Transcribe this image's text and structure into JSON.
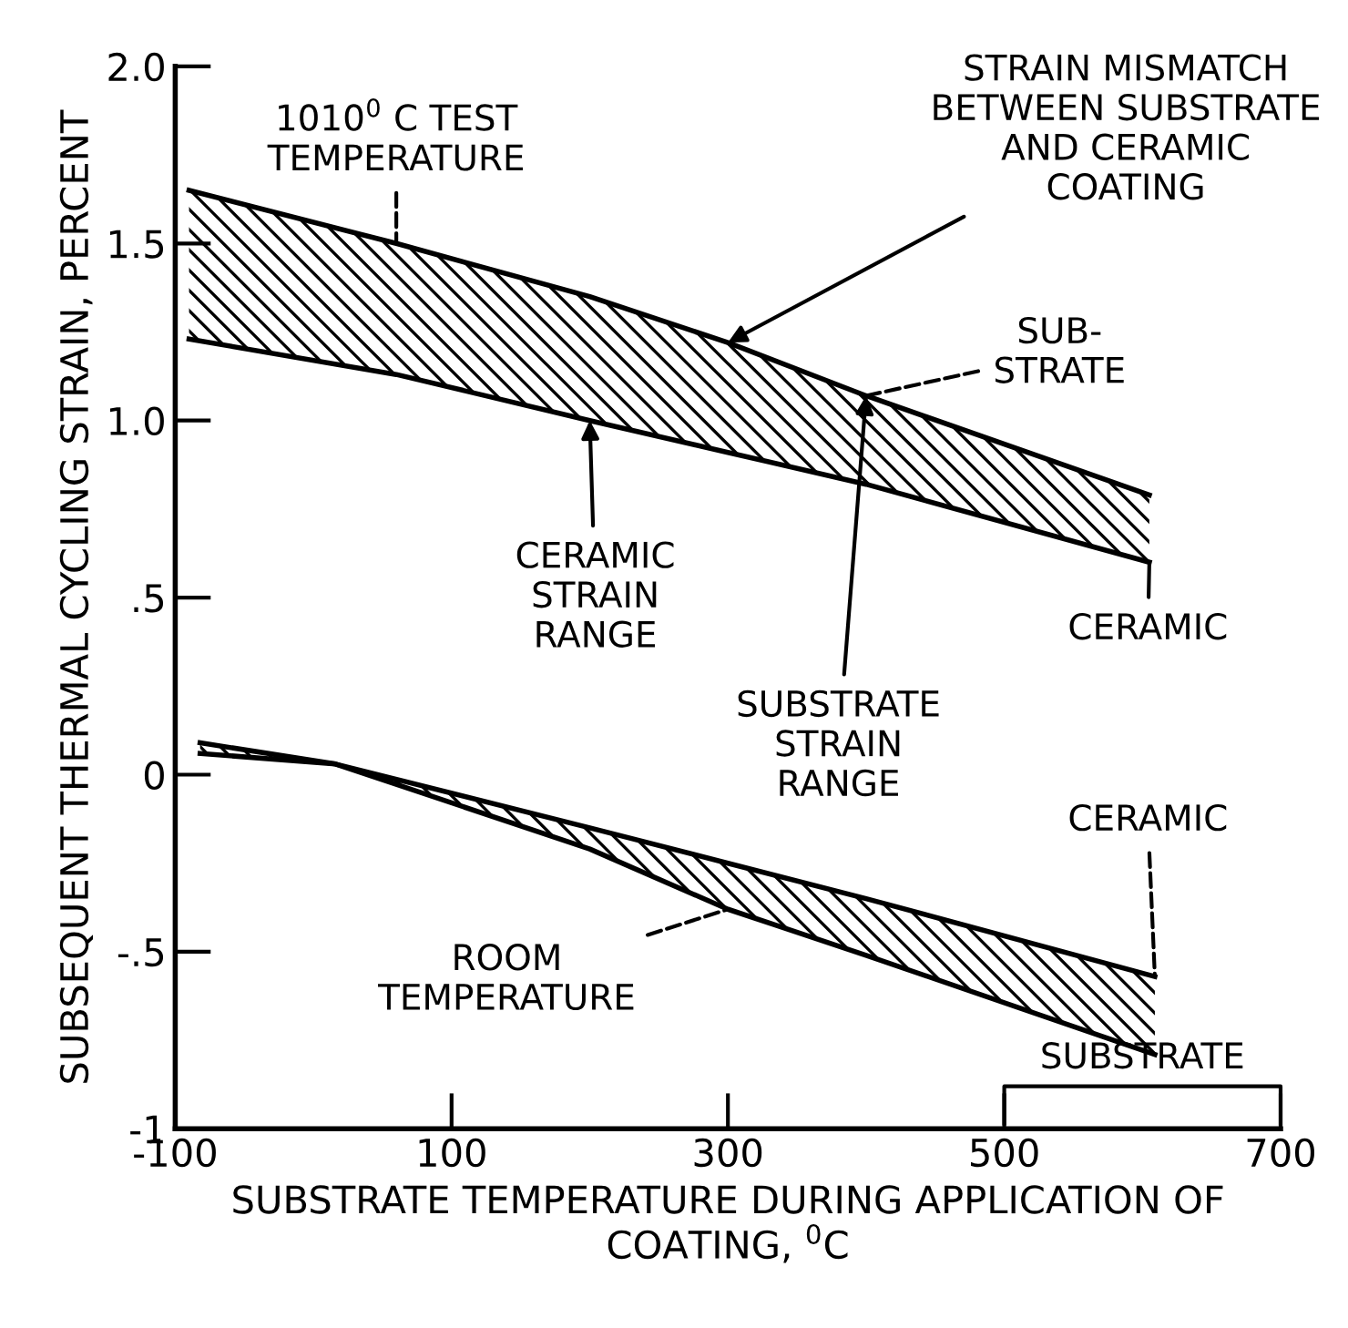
{
  "chart_data": {
    "type": "line",
    "xlabel": "SUBSTRATE TEMPERATURE DURING APPLICATION OF\nCOATING, $^{0}$C",
    "ylabel": "SUBSEQUENT THERMAL CYCLING STRAIN, PERCENT",
    "xlim": [
      -100,
      700
    ],
    "xticks": [
      -100,
      100,
      300,
      500,
      700
    ],
    "ylim": [
      -1,
      2
    ],
    "yticks": [
      {
        "value": -1,
        "label": "-1"
      },
      {
        "value": -0.5,
        "label": "-.5"
      },
      0,
      {
        "value": 0.5,
        "label": ".5"
      },
      {
        "value": 1,
        "label": "1.0"
      },
      {
        "value": 1.5,
        "label": "1.5"
      },
      {
        "value": 2,
        "label": "2.0"
      }
    ],
    "series": [
      {
        "color": "#000000",
        "x": [
          -90,
          60,
          200,
          300,
          400,
          605
        ],
        "values": [
          1.65,
          1.5,
          1.35,
          1.22,
          1.07,
          0.79
        ],
        "lower": [
          1.23,
          1.13,
          1.0,
          0.91,
          0.82,
          0.6
        ],
        "upper": [
          1.65,
          1.5,
          1.35,
          1.22,
          1.07,
          0.79
        ]
      },
      {
        "color": "#000000",
        "x": [
          -90,
          60,
          200,
          300,
          400,
          605
        ],
        "values": [
          1.23,
          1.13,
          1.0,
          0.91,
          0.82,
          0.6
        ]
      },
      {
        "color": "#000000",
        "x": [
          -82,
          16,
          200,
          300,
          400,
          609
        ],
        "values": [
          0.09,
          0.03,
          -0.21,
          -0.38,
          -0.51,
          -0.79
        ],
        "lower": [
          0.09,
          0.03,
          -0.21,
          -0.38,
          -0.51,
          -0.79
        ],
        "upper": [
          0.06,
          0.03,
          -0.15,
          -0.25,
          -0.35,
          -0.57
        ]
      },
      {
        "color": "#000000",
        "x": [
          -82,
          16,
          200,
          300,
          400,
          609
        ],
        "values": [
          0.06,
          0.03,
          -0.15,
          -0.25,
          -0.35,
          -0.57
        ]
      }
    ],
    "annotations": [
      {
        "text": "1010$^{0}$ C TEST\nTEMPERATURE",
        "x": 60,
        "y": 1.5
      },
      {
        "text": "STRAIN MISMATCH\nBETWEEN SUBSTRATE\nAND CERAMIC\nCOATING",
        "x": 300,
        "y": 1.22
      },
      {
        "text": "SUB-\nSTRATE",
        "x": 400,
        "y": 1.07
      },
      {
        "text": "CERAMIC",
        "x": 605,
        "y": 0.6
      },
      {
        "text": "CERAMIC\nSTRAIN\nRANGE",
        "x": 200,
        "y": 1.0
      },
      {
        "text": "SUBSTRATE\nSTRAIN\nRANGE",
        "x": 400,
        "y": 1.07
      },
      {
        "text": "CERAMIC",
        "x": 609,
        "y": -0.57
      },
      {
        "text": "ROOM\nTEMPERATURE",
        "x": 300,
        "y": -0.38
      },
      "SUBSTRATE"
    ],
    "grid": false
  }
}
